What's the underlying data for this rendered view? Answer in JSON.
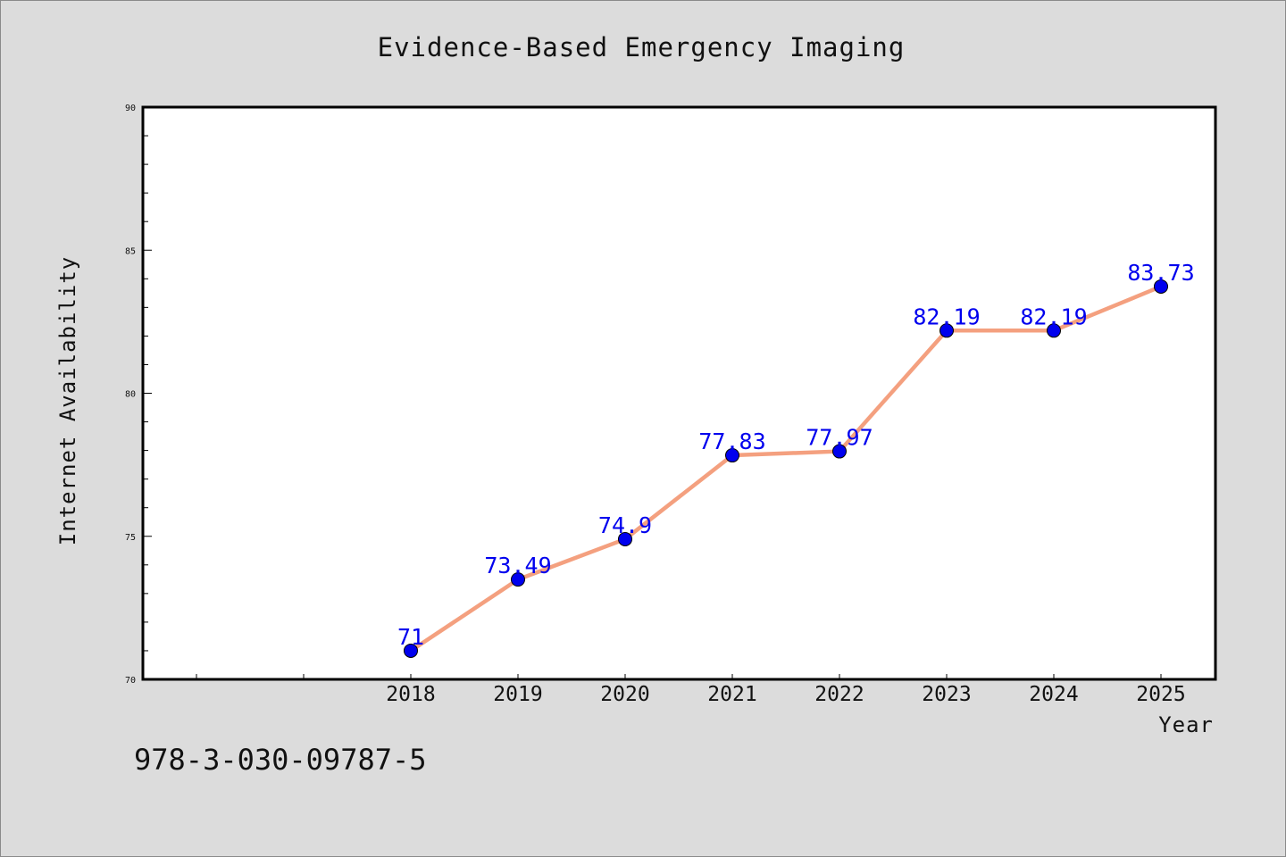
{
  "chart_data": {
    "type": "line",
    "title": "Evidence-Based Emergency Imaging",
    "xlabel": "Year",
    "ylabel": "Internet Availability",
    "x": [
      "2018",
      "2019",
      "2020",
      "2021",
      "2022",
      "2023",
      "2024",
      "2025"
    ],
    "series": [
      {
        "values": [
          71,
          73.49,
          74.9,
          77.83,
          77.97,
          82.19,
          82.19,
          83.73
        ],
        "labels": [
          "71",
          "73.49",
          "74.9",
          "77.83",
          "77.97",
          "82.19",
          "82.19",
          "83.73"
        ]
      }
    ],
    "ylim": [
      70,
      90
    ],
    "yticks": [
      "70",
      "75",
      "80",
      "85",
      "90"
    ],
    "grid": false,
    "legend": "none",
    "colors": {
      "line": "#f4a07f",
      "marker": "#0000ee",
      "data_label": "#0000ee",
      "plot_background": "#ffffff",
      "page_background": "#dcdcdc"
    }
  },
  "footer": {
    "code": "978-3-030-09787-5"
  }
}
